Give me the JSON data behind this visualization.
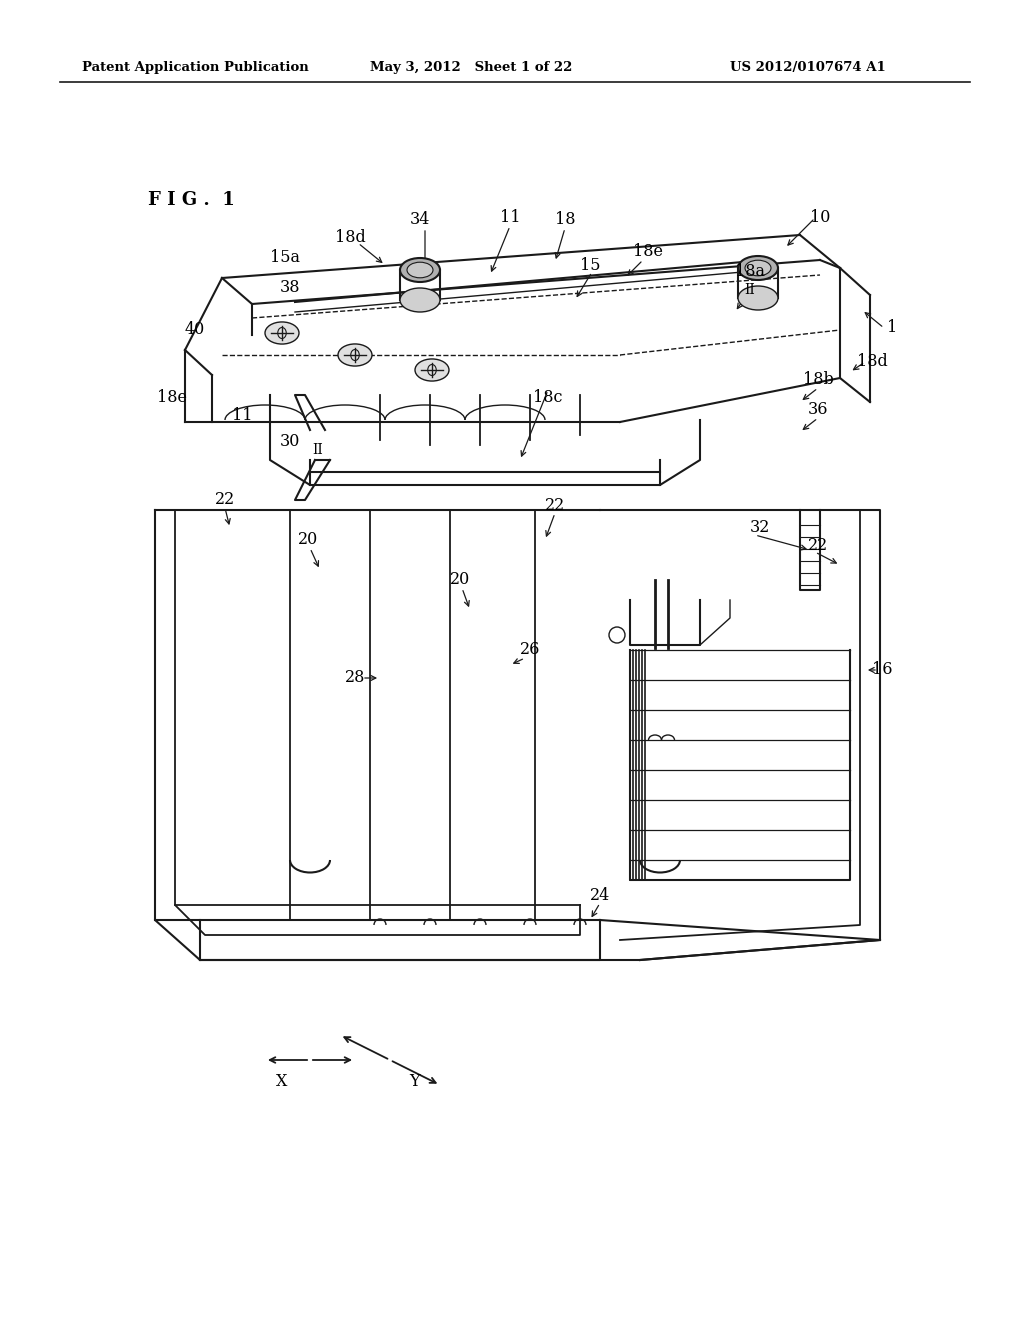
{
  "bg_color": "#ffffff",
  "header_left": "Patent Application Publication",
  "header_mid": "May 3, 2012   Sheet 1 of 22",
  "header_right": "US 2012/0107674 A1",
  "figure_label": "F I G .  1",
  "line_color": "#1a1a1a",
  "text_color": "#000000"
}
